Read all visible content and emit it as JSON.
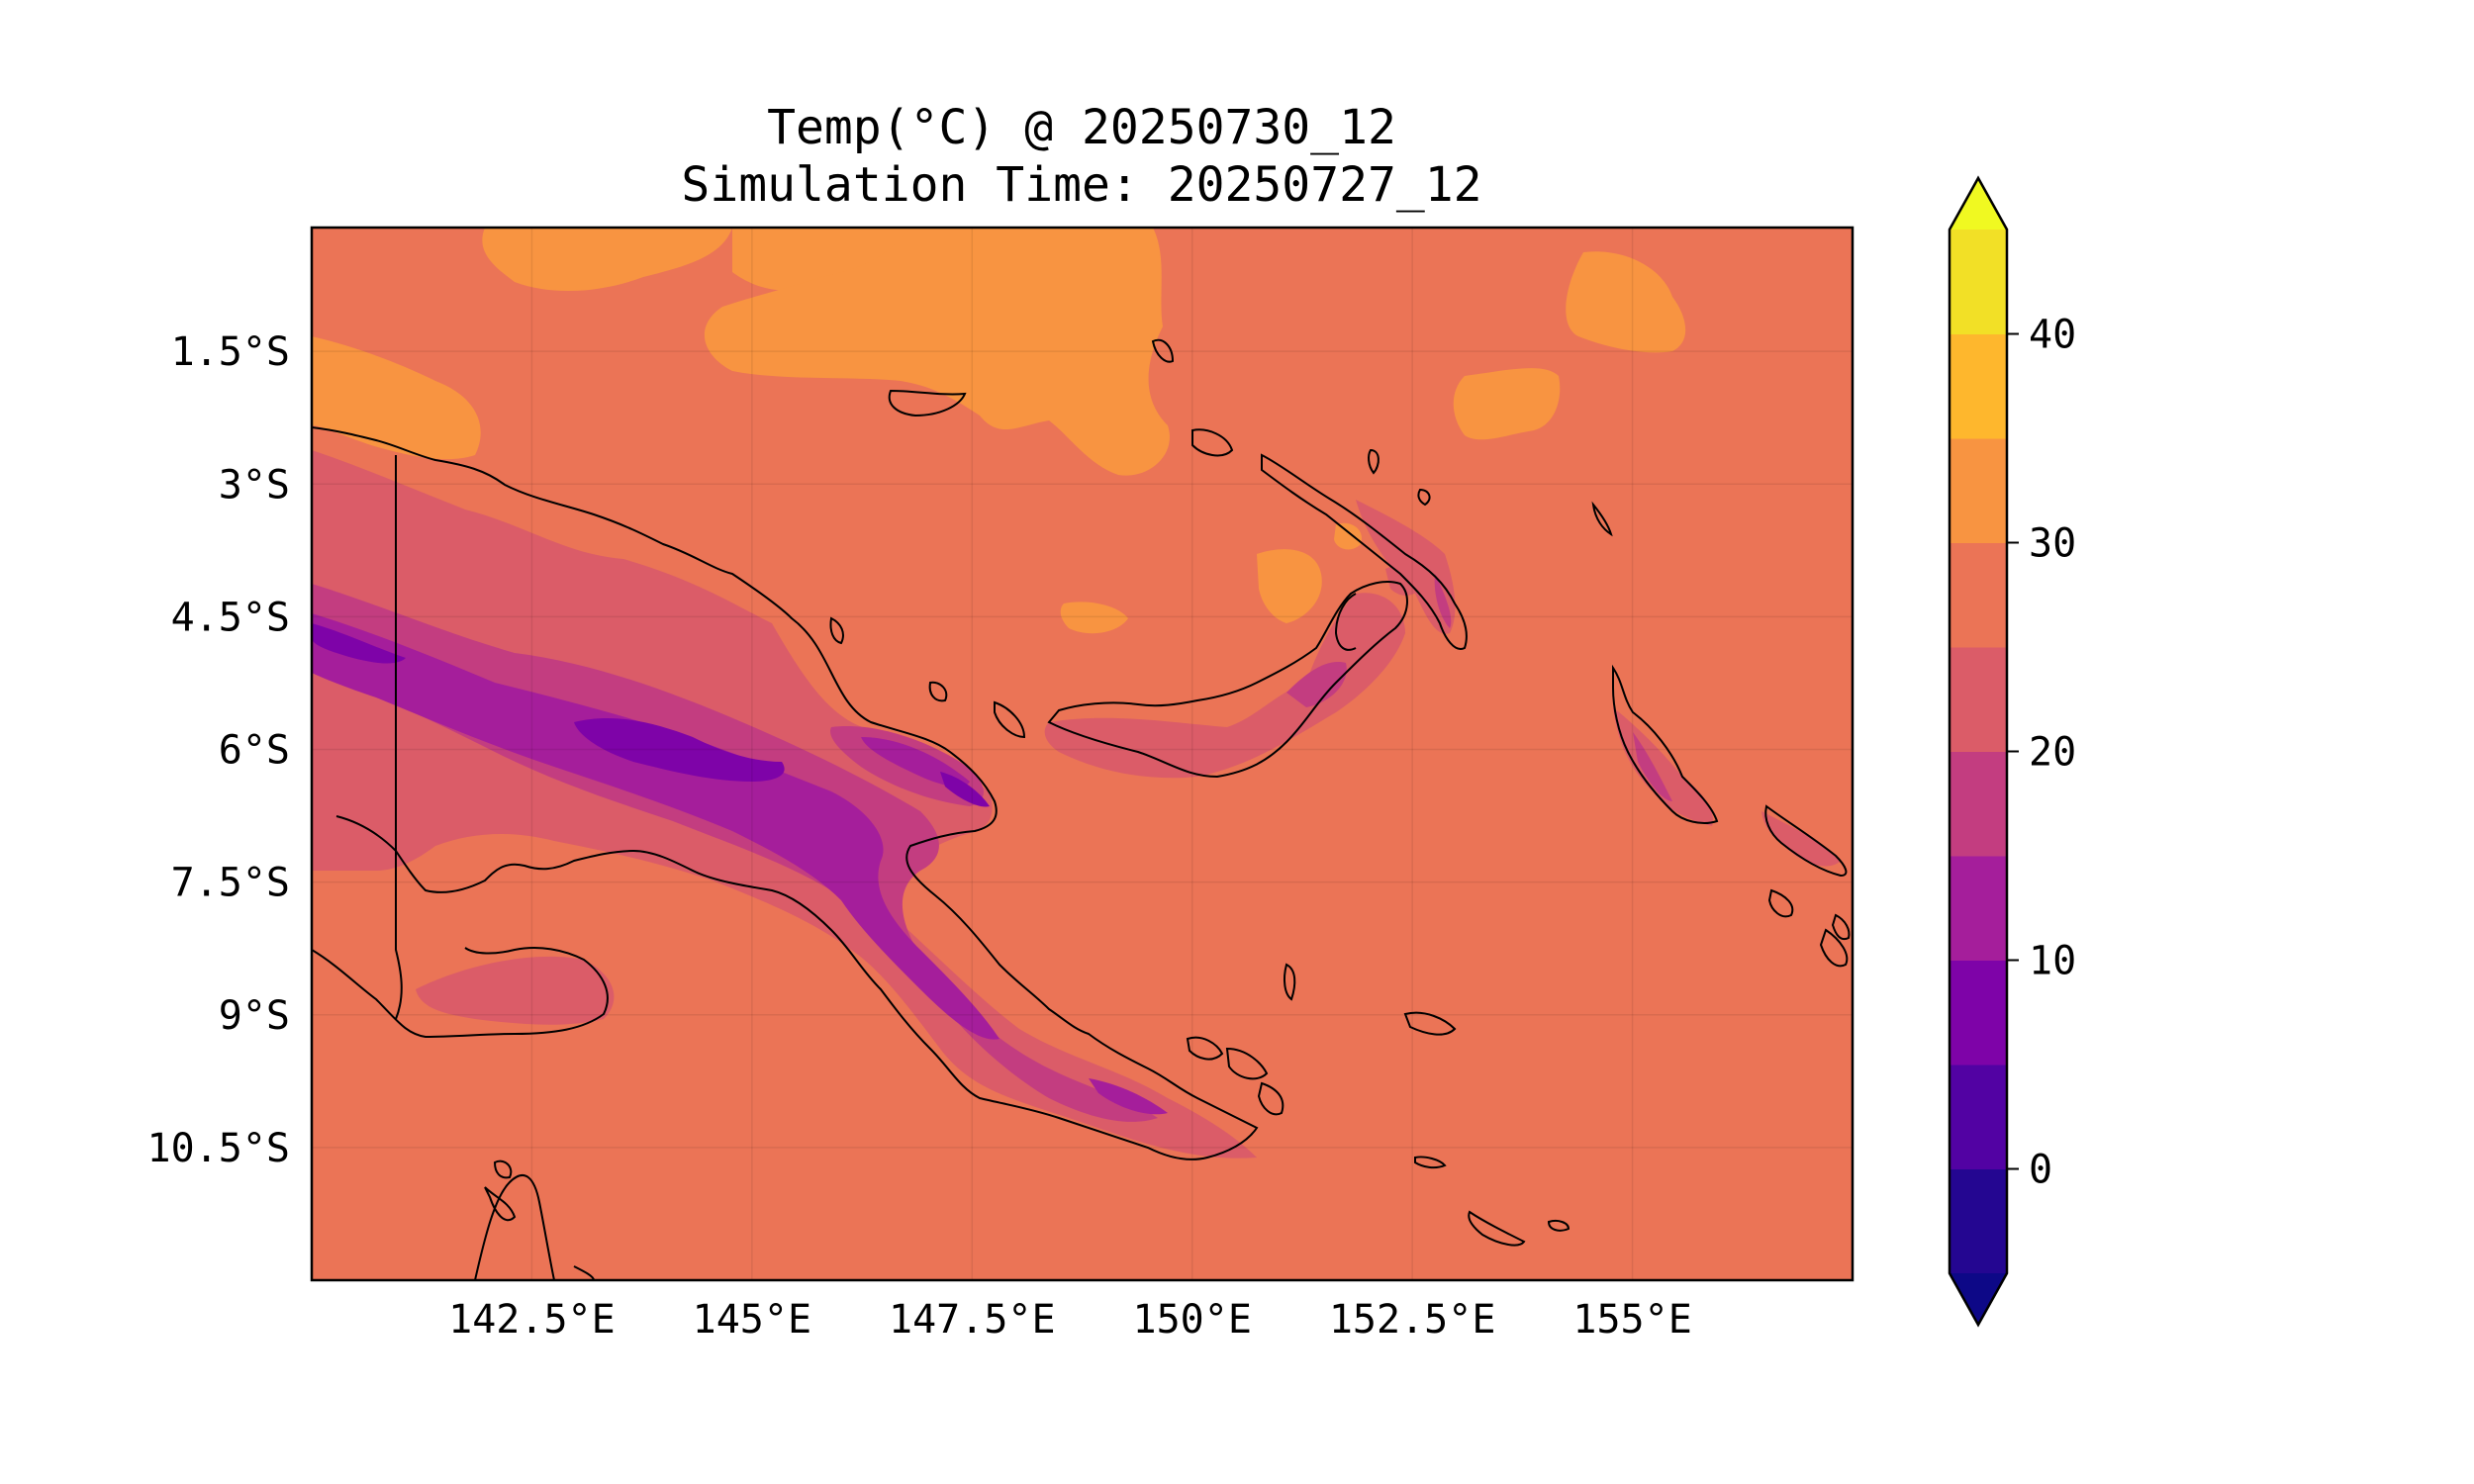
{
  "title": {
    "line1": "Temp(°C) @ 20250730_12",
    "line2": "Simulation Time: 20250727_12"
  },
  "map": {
    "lon_range": [
      140.0,
      157.5
    ],
    "lat_range": [
      -12.0,
      -0.1
    ],
    "lon_ticks": [
      {
        "value": 142.5,
        "label": "142.5°E"
      },
      {
        "value": 145.0,
        "label": "145°E"
      },
      {
        "value": 147.5,
        "label": "147.5°E"
      },
      {
        "value": 150.0,
        "label": "150°E"
      },
      {
        "value": 152.5,
        "label": "152.5°E"
      },
      {
        "value": 155.0,
        "label": "155°E"
      }
    ],
    "lat_ticks": [
      {
        "value": -1.5,
        "label": "1.5°S"
      },
      {
        "value": -3.0,
        "label": "3°S"
      },
      {
        "value": -4.5,
        "label": "4.5°S"
      },
      {
        "value": -6.0,
        "label": "6°S"
      },
      {
        "value": -7.5,
        "label": "7.5°S"
      },
      {
        "value": -9.0,
        "label": "9°S"
      },
      {
        "value": -10.5,
        "label": "10.5°S"
      }
    ],
    "background_level_color": "#eb7456",
    "coastline_color": "#000000",
    "grid": true
  },
  "colorbar": {
    "levels": [
      -5,
      0,
      5,
      10,
      15,
      20,
      25,
      30,
      35,
      40,
      45
    ],
    "colors": [
      "#240691",
      "#5202a3",
      "#7e03a8",
      "#a51e9b",
      "#c33d80",
      "#db5c68",
      "#eb7456",
      "#f89441",
      "#feb72d",
      "#f2e026"
    ],
    "under_color": "#0d0887",
    "over_color": "#f0f921",
    "extend": "both",
    "tick_values": [
      0,
      10,
      20,
      30,
      40
    ],
    "tick_labels": [
      "0",
      "10",
      "20",
      "30",
      "40"
    ]
  }
}
